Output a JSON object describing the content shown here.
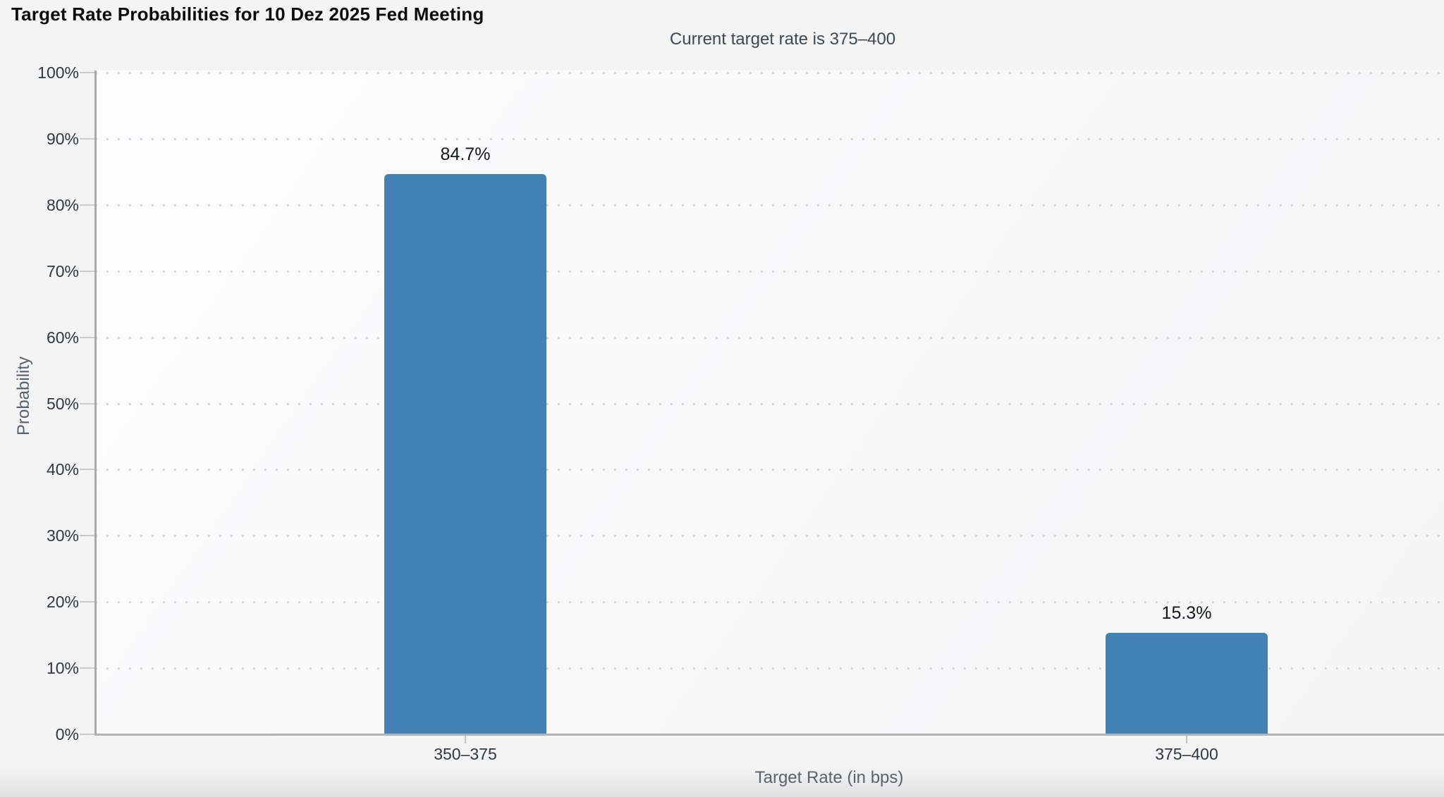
{
  "chart_data": {
    "type": "bar",
    "title": "Target Rate Probabilities for 10 Dez 2025 Fed Meeting",
    "subtitle": "Current target rate is 375–400",
    "xlabel": "Target Rate (in bps)",
    "ylabel": "Probability",
    "categories": [
      "350–375",
      "375–400"
    ],
    "values": [
      84.7,
      15.3
    ],
    "data_labels": [
      "84.7%",
      "15.3%"
    ],
    "ylim": [
      0,
      100
    ],
    "ytick_step": 10,
    "yticks": [
      "0%",
      "10%",
      "20%",
      "30%",
      "40%",
      "50%",
      "60%",
      "70%",
      "80%",
      "90%",
      "100%"
    ],
    "grid": "horizontal-dotted",
    "legend": "none",
    "bar_color": "#4381b5"
  },
  "colors": {
    "background": "#f4f4f5",
    "bar": "#4381b5",
    "grid_dot": "#d8d8db",
    "axis_line": "#a9a9ac",
    "title_text": "#0c0c0d",
    "subtitle_text": "#3d4852",
    "tick_text": "#30373f",
    "axis_title_text": "#5a6169"
  }
}
